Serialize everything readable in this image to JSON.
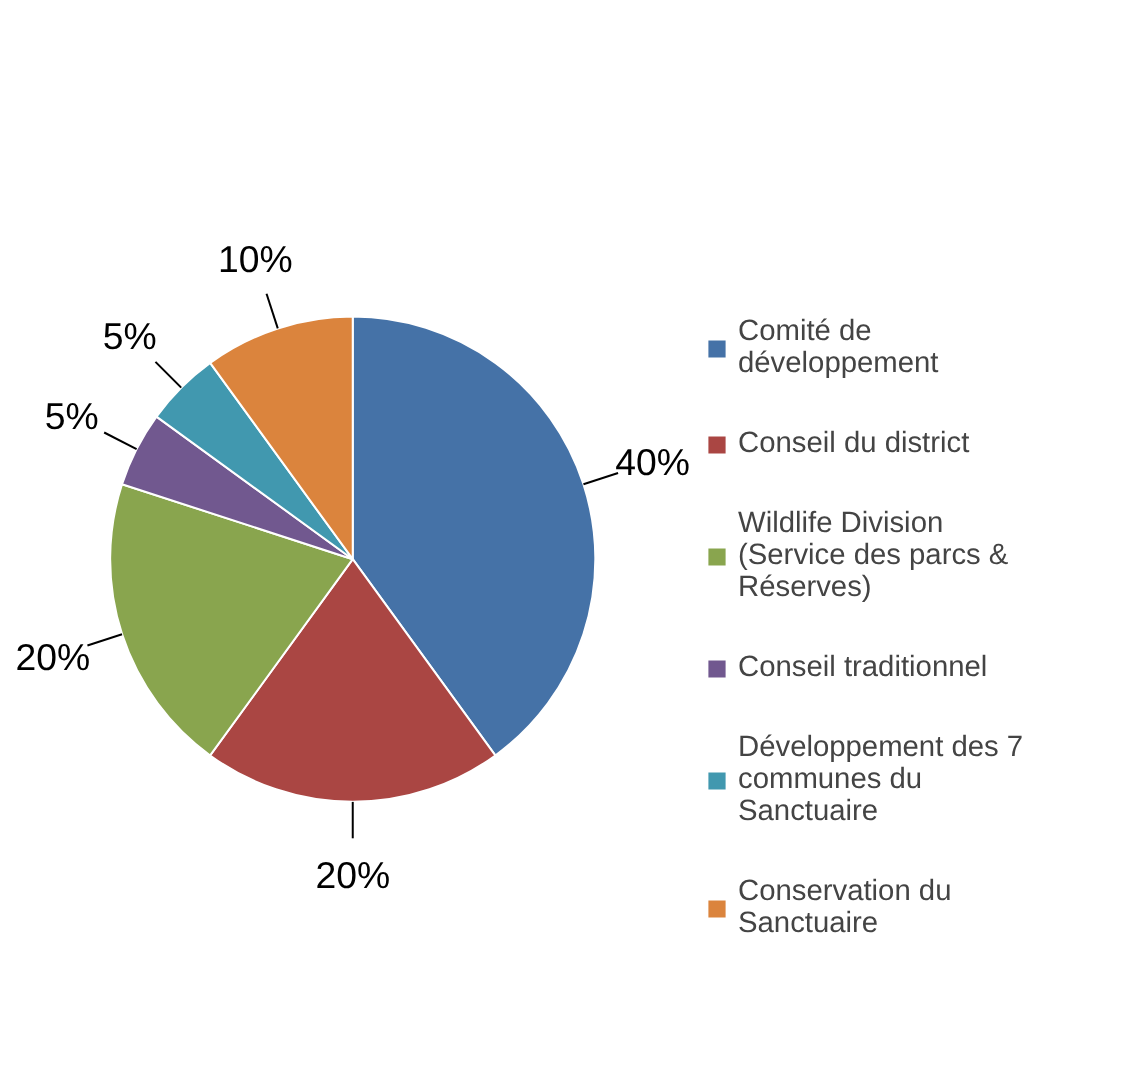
{
  "chart_data": {
    "type": "pie",
    "categories": [
      "Comité de développement",
      "Conseil du district",
      "Wildlife Division (Service des parcs & Réserves)",
      "Conseil traditionnel",
      "Développement des 7 communes du Sanctuaire",
      "Conservation du Sanctuaire"
    ],
    "values": [
      40,
      20,
      20,
      5,
      5,
      10
    ],
    "colors": [
      "#4572a7",
      "#aa4643",
      "#89a54e",
      "#71588f",
      "#4198af",
      "#db843d"
    ],
    "value_labels": [
      "40%",
      "20%",
      "20%",
      "5%",
      "5%",
      "10%"
    ],
    "legend": "right"
  }
}
